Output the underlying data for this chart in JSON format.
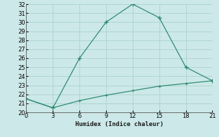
{
  "xlabel": "Humidex (Indice chaleur)",
  "x": [
    0,
    3,
    6,
    9,
    12,
    15,
    18,
    21
  ],
  "line1_y": [
    21.5,
    20.5,
    26.0,
    30.0,
    32.0,
    30.5,
    25.0,
    23.5
  ],
  "line2_y": [
    21.5,
    20.5,
    21.3,
    21.9,
    22.4,
    22.9,
    23.2,
    23.5
  ],
  "line_color": "#2e8b72",
  "bg_color": "#cce8e8",
  "grid_color": "#b0d4d4",
  "xlim": [
    0,
    21
  ],
  "ylim": [
    20,
    32
  ],
  "xticks": [
    0,
    3,
    6,
    9,
    12,
    15,
    18,
    21
  ],
  "yticks": [
    20,
    21,
    22,
    23,
    24,
    25,
    26,
    27,
    28,
    29,
    30,
    31,
    32
  ]
}
